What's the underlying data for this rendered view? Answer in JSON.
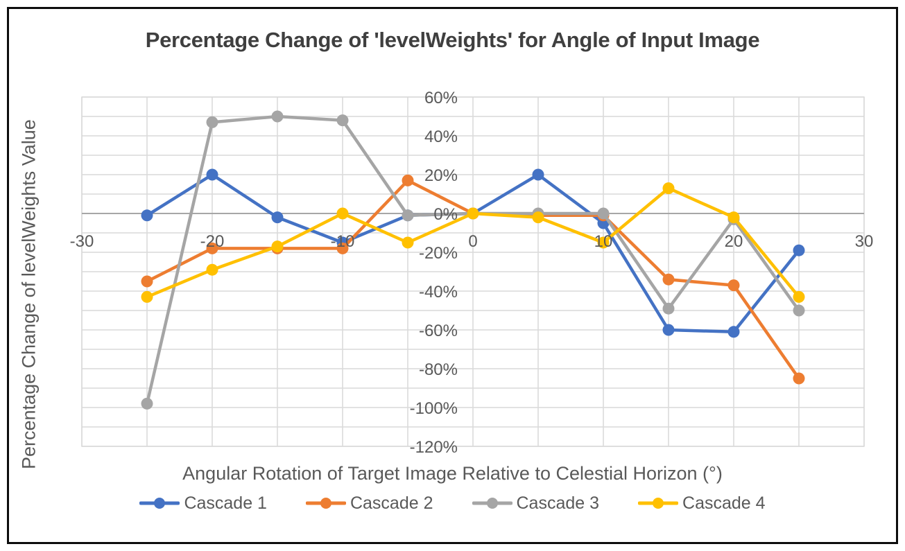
{
  "chart_data": {
    "type": "line",
    "title": "Percentage Change of 'levelWeights' for Angle of Input Image",
    "xlabel": "Angular Rotation of Target Image Relative to Celestial Horizon (°)",
    "ylabel": "Percentage Change of levelWeights Value",
    "x": [
      -25,
      -20,
      -15,
      -10,
      -5,
      0,
      5,
      10,
      15,
      20,
      25
    ],
    "series": [
      {
        "name": "Cascade 1",
        "color": "#4472C4",
        "values": [
          -1,
          20,
          -2,
          -15,
          -1,
          0,
          20,
          -5,
          -60,
          -61,
          -19
        ]
      },
      {
        "name": "Cascade 2",
        "color": "#ED7D31",
        "values": [
          -35,
          -18,
          -18,
          -18,
          17,
          0,
          -1,
          -1,
          -34,
          -37,
          -85
        ]
      },
      {
        "name": "Cascade 3",
        "color": "#A5A5A5",
        "values": [
          -98,
          47,
          50,
          48,
          -1,
          0,
          0,
          0,
          -49,
          -3,
          -50
        ]
      },
      {
        "name": "Cascade 4",
        "color": "#FFC000",
        "values": [
          -43,
          -29,
          -17,
          0,
          -15,
          0,
          -2,
          -15,
          13,
          -2,
          -43
        ]
      }
    ],
    "xlim": [
      -30,
      30
    ],
    "ylim": [
      -120,
      60
    ],
    "x_ticks": [
      -30,
      -20,
      -10,
      0,
      10,
      20,
      30
    ],
    "x_tick_labels": [
      "-30",
      "-20",
      "-10",
      "0",
      "10",
      "20",
      "30"
    ],
    "y_ticks": [
      60,
      40,
      20,
      0,
      -20,
      -40,
      -60,
      -80,
      -100,
      -120
    ],
    "y_tick_labels": [
      "60%",
      "40%",
      "20%",
      "0%",
      "-20%",
      "-40%",
      "-60%",
      "-80%",
      "-100%",
      "-120%"
    ],
    "grid": true,
    "gridline_color": "#d9d9d9",
    "zero_line_color": "#a6a6a6",
    "legend_position": "bottom"
  }
}
